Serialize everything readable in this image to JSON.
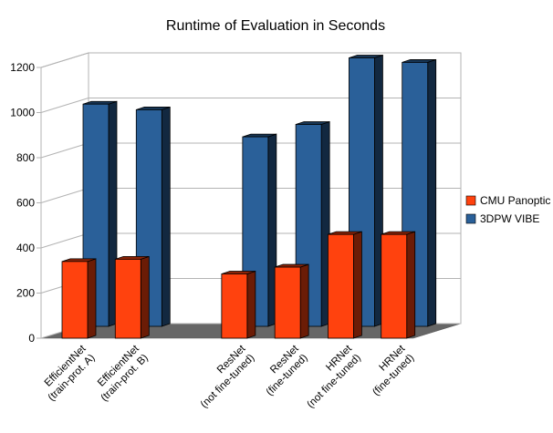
{
  "chart_data": {
    "type": "bar",
    "title": "Runtime of Evaluation in Seconds",
    "xlabel": "",
    "ylabel": "",
    "ylim": [
      0,
      1200
    ],
    "yticks": [
      0,
      200,
      400,
      600,
      800,
      1000,
      1200
    ],
    "grid": true,
    "legend_position": "right",
    "categories": [
      {
        "lines": [
          "EfficientNet",
          "(train-prot. A)"
        ]
      },
      {
        "lines": [
          "EfficientNet",
          "(train-prot. B)"
        ]
      },
      {
        "lines": []
      },
      {
        "lines": [
          "ResNet",
          "(not fine-tuned)"
        ]
      },
      {
        "lines": [
          "ResNet",
          "(fine-tuned)"
        ]
      },
      {
        "lines": [
          "HRNet",
          "(not fine-tuned)"
        ]
      },
      {
        "lines": [
          "HRNet",
          "(fine-tuned)"
        ]
      }
    ],
    "series": [
      {
        "name": "CMU Panoptic",
        "color": "#ff420e",
        "values": [
          340,
          350,
          null,
          285,
          315,
          460,
          460
        ]
      },
      {
        "name": "3DPW VIBE",
        "color": "#2a6099",
        "values": [
          985,
          960,
          null,
          840,
          895,
          1190,
          1170
        ]
      }
    ]
  }
}
